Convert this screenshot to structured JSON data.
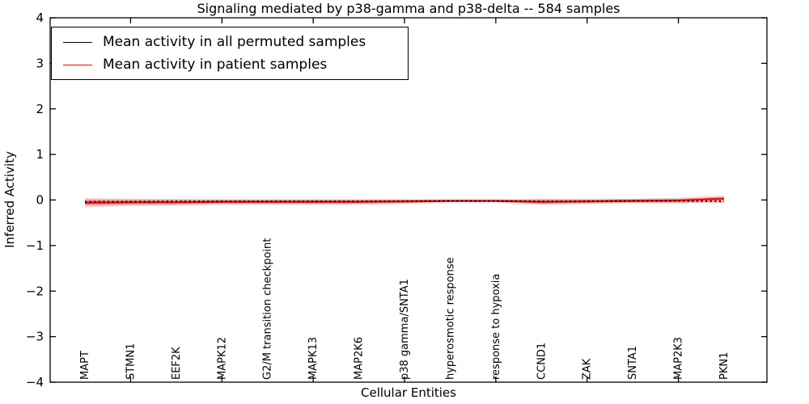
{
  "figure": {
    "title": "Signaling mediated by p38-gamma and p38-delta -- 584 samples",
    "xlabel": "Cellular Entities",
    "ylabel": "Inferred Activity"
  },
  "legend": {
    "position": "upper left",
    "entries": [
      {
        "label": "Mean activity in all permuted samples",
        "color": "#000000"
      },
      {
        "label": "Mean activity in patient samples",
        "color": "#ff0000"
      }
    ]
  },
  "chart_data": {
    "type": "line",
    "title": "Signaling mediated by p38-gamma and p38-delta -- 584 samples",
    "xlabel": "Cellular Entities",
    "ylabel": "Inferred Activity",
    "ylim": [
      -4,
      4
    ],
    "yticks": [
      -4,
      -3,
      -2,
      -1,
      0,
      1,
      2,
      3,
      4
    ],
    "ytick_labels": [
      "−4",
      "−3",
      "−2",
      "−1",
      "0",
      "1",
      "2",
      "3",
      "4"
    ],
    "grid": false,
    "legend_position": "upper left",
    "tick_mark_indices": [
      1,
      3,
      5,
      7,
      9,
      11,
      13
    ],
    "categories": [
      "MAPT",
      "STMN1",
      "EEF2K",
      "MAPK12",
      "G2/M transition checkpoint",
      "MAPK13",
      "MAP2K6",
      "p38 gamma/SNTA1",
      "hyperosmotic response",
      "response to hypoxia",
      "CCND1",
      "ZAK",
      "SNTA1",
      "MAP2K3",
      "PKN1"
    ],
    "series": [
      {
        "name": "Mean activity in all permuted samples",
        "color": "#000000",
        "linestyle": "dotted",
        "values": [
          -0.04,
          -0.04,
          -0.03,
          -0.03,
          -0.03,
          -0.03,
          -0.03,
          -0.03,
          -0.02,
          -0.02,
          -0.03,
          -0.03,
          -0.02,
          -0.02,
          -0.03
        ],
        "band_halfwidth": [
          0.06,
          0.05,
          0.05,
          0.04,
          0.04,
          0.04,
          0.04,
          0.04,
          0.03,
          0.03,
          0.06,
          0.05,
          0.04,
          0.04,
          0.05
        ],
        "band_color": "rgba(0,0,0,0.13)"
      },
      {
        "name": "Mean activity in patient samples",
        "color": "#ff0000",
        "linestyle": "solid",
        "values": [
          -0.06,
          -0.05,
          -0.05,
          -0.04,
          -0.04,
          -0.04,
          -0.04,
          -0.03,
          -0.02,
          -0.02,
          -0.04,
          -0.03,
          -0.02,
          -0.01,
          0.03
        ],
        "band_halfwidth": [
          0.1,
          0.08,
          0.07,
          0.06,
          0.06,
          0.06,
          0.06,
          0.05,
          0.03,
          0.03,
          0.06,
          0.05,
          0.05,
          0.06,
          0.07
        ],
        "band_color": "rgba(255,0,0,0.18)",
        "inner_band_color": "rgba(255,0,0,0.28)"
      }
    ]
  }
}
